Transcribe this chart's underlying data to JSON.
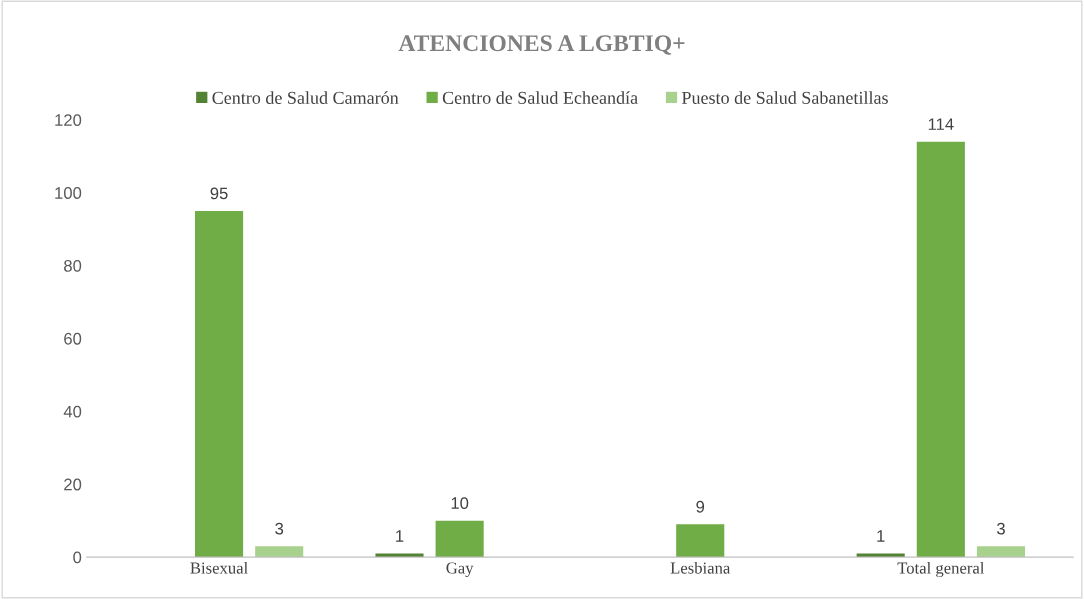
{
  "chart_data": {
    "type": "bar",
    "title": "ATENCIONES A LGBTIQ+",
    "categories": [
      "Bisexual",
      "Gay",
      "Lesbiana",
      "Total general"
    ],
    "series": [
      {
        "name": "Centro de Salud Camarón",
        "color": "#548235",
        "values": [
          null,
          1,
          null,
          1
        ]
      },
      {
        "name": "Centro de Salud Echeandía",
        "color": "#70ad47",
        "values": [
          95,
          10,
          9,
          114
        ]
      },
      {
        "name": "Puesto de Salud Sabanetillas",
        "color": "#a9d18e",
        "values": [
          3,
          null,
          null,
          3
        ]
      }
    ],
    "ylim": [
      0,
      120
    ],
    "yticks": [
      0,
      20,
      40,
      60,
      80,
      100,
      120
    ],
    "grid": false,
    "legend": "top",
    "data_labels": true
  }
}
